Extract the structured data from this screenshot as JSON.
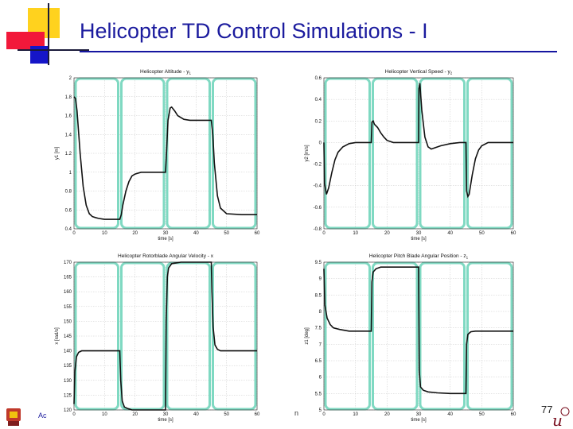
{
  "slide": {
    "title": "Helicopter TD Control Simulations - I",
    "page_number": "77",
    "footer_left": "Ac",
    "footer_mid": "n"
  },
  "colors": {
    "title": "#1b1b9e",
    "highlight": "#7fd9c2",
    "curve": "#111111"
  },
  "chart_data": [
    {
      "type": "line",
      "title": "Helicopter Altitude - y",
      "title_sub": "1",
      "xlabel": "time [s]",
      "ylabel": "y1 [m]",
      "xlim": [
        0,
        60
      ],
      "ylim": [
        0.4,
        2
      ],
      "xticks": [
        0,
        10,
        20,
        30,
        40,
        50,
        60
      ],
      "yticks": [
        0.4,
        0.6,
        0.8,
        1,
        1.2,
        1.4,
        1.6,
        1.8,
        2
      ],
      "ytick_labels": [
        "0.4",
        "0.6",
        "0.8",
        "1",
        "1.2",
        "1.4",
        "1.6",
        "1.8",
        "2"
      ],
      "grid": true,
      "highlight_segments": [
        [
          0,
          15
        ],
        [
          15,
          30
        ],
        [
          30,
          45
        ],
        [
          45,
          60
        ]
      ],
      "x": [
        0,
        0.5,
        1,
        2,
        3,
        4,
        5,
        6,
        7,
        8,
        10,
        12,
        14,
        15,
        15.5,
        16,
        17,
        18,
        19,
        20,
        22,
        25,
        28,
        30,
        30.3,
        30.8,
        31.5,
        32,
        33,
        34,
        36,
        38,
        40,
        42,
        44,
        45,
        45.5,
        46,
        47,
        48,
        50,
        55,
        60
      ],
      "y": [
        1.8,
        1.78,
        1.65,
        1.2,
        0.85,
        0.65,
        0.56,
        0.53,
        0.52,
        0.51,
        0.5,
        0.5,
        0.5,
        0.5,
        0.55,
        0.65,
        0.8,
        0.9,
        0.96,
        0.98,
        1,
        1,
        1,
        1,
        1.2,
        1.55,
        1.68,
        1.69,
        1.65,
        1.6,
        1.56,
        1.55,
        1.55,
        1.55,
        1.55,
        1.55,
        1.4,
        1.1,
        0.75,
        0.62,
        0.56,
        0.55,
        0.55
      ]
    },
    {
      "type": "line",
      "title": "Helicopter Vertical Speed - y",
      "title_sub": "2",
      "xlabel": "time [s]",
      "ylabel": "y2 [m/s]",
      "xlim": [
        0,
        60
      ],
      "ylim": [
        -0.8,
        0.6
      ],
      "xticks": [
        0,
        10,
        20,
        30,
        40,
        50,
        60
      ],
      "yticks": [
        -0.8,
        -0.6,
        -0.4,
        -0.2,
        0,
        0.2,
        0.4,
        0.6
      ],
      "ytick_labels": [
        "-0.8",
        "-0.6",
        "-0.4",
        "-0.2",
        "0",
        "0.2",
        "0.4",
        "0.6"
      ],
      "grid": true,
      "highlight_segments": [
        [
          0,
          15
        ],
        [
          15,
          30
        ],
        [
          30,
          45
        ],
        [
          45,
          60
        ]
      ],
      "x": [
        0,
        0.2,
        0.8,
        1.5,
        2.5,
        3.5,
        4.5,
        6,
        8,
        10,
        12,
        14,
        15,
        15.2,
        15.6,
        16,
        17,
        18,
        19,
        20,
        22,
        25,
        28,
        30,
        30.1,
        30.4,
        31,
        32,
        33,
        34,
        35,
        37,
        40,
        43,
        45,
        45.2,
        45.6,
        46,
        47,
        48,
        49,
        50,
        52,
        55,
        60
      ],
      "y": [
        0,
        -0.38,
        -0.48,
        -0.42,
        -0.28,
        -0.16,
        -0.09,
        -0.04,
        -0.01,
        0,
        0,
        0,
        0,
        0.19,
        0.2,
        0.17,
        0.14,
        0.09,
        0.05,
        0.02,
        0,
        0,
        0,
        0,
        0.5,
        0.55,
        0.3,
        0.05,
        -0.04,
        -0.06,
        -0.05,
        -0.03,
        -0.01,
        0,
        0,
        -0.45,
        -0.5,
        -0.48,
        -0.3,
        -0.15,
        -0.07,
        -0.03,
        0,
        0,
        0
      ]
    },
    {
      "type": "line",
      "title": "Helicopter Rotorblade Angular Velocity - x",
      "title_sub": "",
      "xlabel": "time [s]",
      "ylabel": "x [rad/s]",
      "xlim": [
        0,
        60
      ],
      "ylim": [
        120,
        170
      ],
      "xticks": [
        0,
        10,
        20,
        30,
        40,
        50,
        60
      ],
      "yticks": [
        120,
        125,
        130,
        135,
        140,
        145,
        150,
        155,
        160,
        165,
        170
      ],
      "ytick_labels": [
        "120",
        "125",
        "130",
        "135",
        "140",
        "145",
        "150",
        "155",
        "160",
        "165",
        "170"
      ],
      "grid": true,
      "highlight_segments": [
        [
          0,
          15
        ],
        [
          15,
          30
        ],
        [
          30,
          45
        ],
        [
          45,
          60
        ]
      ],
      "x": [
        0,
        0.3,
        0.8,
        1.5,
        2.5,
        4,
        6,
        10,
        15,
        15.3,
        15.8,
        16.5,
        17.5,
        19,
        22,
        26,
        29.5,
        30,
        30.2,
        30.6,
        31,
        32,
        35,
        40,
        44.5,
        45,
        45.2,
        45.6,
        46.2,
        47,
        48,
        52,
        60
      ],
      "y": [
        122,
        133,
        138,
        139.5,
        140,
        140,
        140,
        140,
        140,
        130,
        123,
        121,
        120.5,
        120,
        120,
        120,
        120,
        120,
        150,
        165,
        168,
        169.5,
        170,
        170,
        170,
        170,
        160,
        148,
        142,
        140.5,
        140,
        140,
        140
      ]
    },
    {
      "type": "line",
      "title": "Helicopter Pitch Blade Angular Position - z",
      "title_sub": "1",
      "xlabel": "time [s]",
      "ylabel": "z1 [deg]",
      "xlim": [
        0,
        60
      ],
      "ylim": [
        5,
        9.5
      ],
      "xticks": [
        0,
        10,
        20,
        30,
        40,
        50,
        60
      ],
      "yticks": [
        5,
        5.5,
        6,
        6.5,
        7,
        7.5,
        8,
        8.5,
        9,
        9.5
      ],
      "ytick_labels": [
        "5",
        "5.5",
        "6",
        "6.5",
        "7",
        "7.5",
        "8",
        "8.5",
        "9",
        "9.5"
      ],
      "grid": true,
      "highlight_segments": [
        [
          0,
          15
        ],
        [
          15,
          30
        ],
        [
          30,
          45
        ],
        [
          45,
          60
        ]
      ],
      "x": [
        0,
        0.3,
        1,
        2,
        3,
        5,
        8,
        10,
        15,
        15.2,
        15.6,
        16.5,
        18,
        22,
        26,
        30,
        30.2,
        30.6,
        31.5,
        33,
        36,
        40,
        45,
        45.2,
        45.6,
        46.5,
        48,
        52,
        60
      ],
      "y": [
        9.3,
        8.2,
        7.8,
        7.6,
        7.5,
        7.45,
        7.4,
        7.4,
        7.4,
        8.9,
        9.2,
        9.3,
        9.35,
        9.35,
        9.35,
        9.35,
        6.2,
        5.7,
        5.6,
        5.55,
        5.52,
        5.5,
        5.5,
        7.0,
        7.3,
        7.38,
        7.4,
        7.4,
        7.4
      ]
    }
  ]
}
